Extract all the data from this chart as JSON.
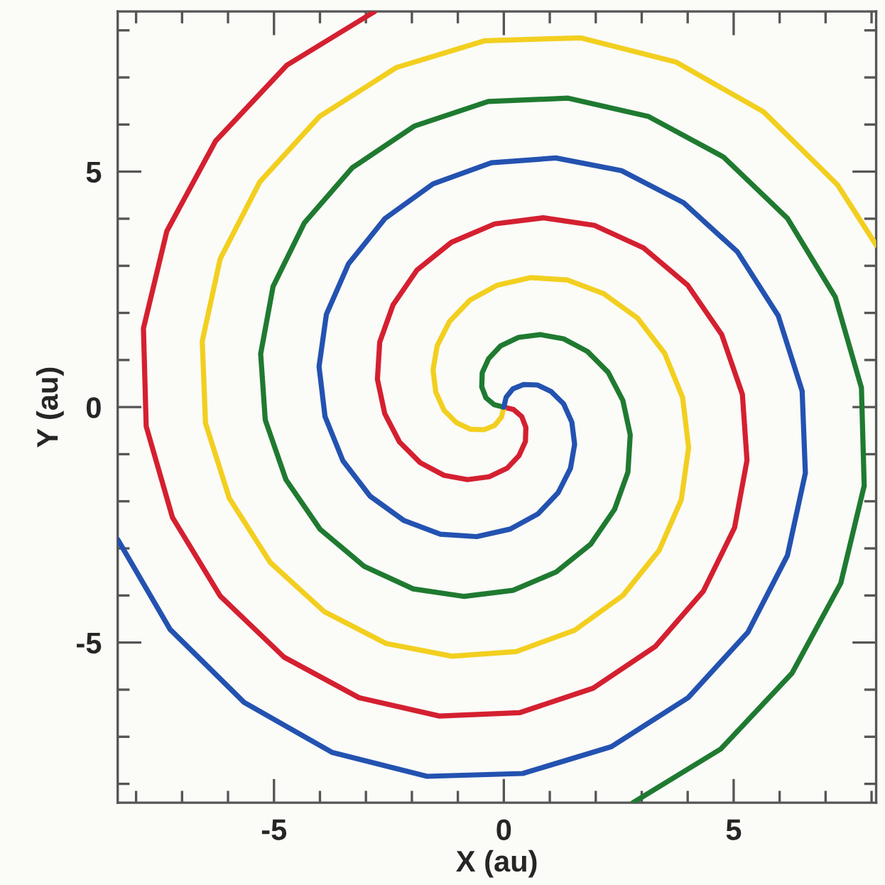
{
  "chart_data": {
    "type": "line",
    "xlabel": "X (au)",
    "ylabel": "Y (au)",
    "xlim": [
      -8.4,
      8.1
    ],
    "ylim": [
      -8.4,
      8.4
    ],
    "xticks": [
      {
        "value": -8,
        "label": null
      },
      {
        "value": -7,
        "label": null
      },
      {
        "value": -6,
        "label": null
      },
      -5,
      {
        "value": -4,
        "label": null
      },
      {
        "value": -3,
        "label": null
      },
      {
        "value": -2,
        "label": null
      },
      {
        "value": -1,
        "label": null
      },
      0,
      {
        "value": 1,
        "label": null
      },
      {
        "value": 2,
        "label": null
      },
      {
        "value": 3,
        "label": null
      },
      {
        "value": 4,
        "label": null
      },
      5,
      {
        "value": 6,
        "label": null
      },
      {
        "value": 7,
        "label": null
      },
      {
        "value": 8,
        "label": null
      }
    ],
    "yticks": [
      {
        "value": -8,
        "label": null
      },
      {
        "value": -7,
        "label": null
      },
      {
        "value": -6,
        "label": null
      },
      -5,
      {
        "value": -4,
        "label": null
      },
      {
        "value": -3,
        "label": null
      },
      {
        "value": -2,
        "label": null
      },
      {
        "value": -1,
        "label": null
      },
      0,
      {
        "value": 1,
        "label": null
      },
      {
        "value": 2,
        "label": null
      },
      {
        "value": 3,
        "label": null
      },
      {
        "value": 4,
        "label": null
      },
      5,
      {
        "value": 6,
        "label": null
      },
      {
        "value": 7,
        "label": null
      },
      {
        "value": 8,
        "label": null
      }
    ],
    "grid": false,
    "legend": false,
    "marker": "none",
    "line_style": "solid",
    "series": [
      {
        "color": "#d42030",
        "x": [
          0,
          0.21,
          0.39,
          0.48,
          0.47,
          0.33,
          0.07,
          -0.32,
          -0.79,
          -1.3,
          -1.82,
          -2.27,
          -2.59,
          -2.75,
          -2.7,
          -2.41,
          -1.89,
          -1.14,
          -0.2,
          0.86,
          1.97,
          3.04,
          4.0,
          4.74,
          5.19,
          5.29,
          5.02,
          4.34,
          3.3,
          1.94,
          0.34,
          -1.4,
          -3.15,
          -4.78,
          -6.17,
          -7.21,
          -7.78,
          -7.84,
          -7.33,
          -6.27,
          -4.72,
          -2.81
        ],
        "values": [
          0,
          -0.05,
          -0.2,
          -0.43,
          -0.73,
          -1.03,
          -1.3,
          -1.48,
          -1.54,
          -1.45,
          -1.18,
          -0.74,
          -0.14,
          0.59,
          1.38,
          2.17,
          2.91,
          3.5,
          3.89,
          4.02,
          3.86,
          3.38,
          2.59,
          1.54,
          0.27,
          -1.13,
          -2.56,
          -3.91,
          -5.08,
          -5.97,
          -6.49,
          -6.56,
          -6.17,
          -5.31,
          -4.01,
          -2.34,
          -0.41,
          1.67,
          3.74,
          5.65,
          7.26,
          8.4
        ]
      },
      {
        "color": "#f2cf1f",
        "x": [
          0,
          -0.05,
          -0.2,
          -0.43,
          -0.73,
          -1.03,
          -1.3,
          -1.48,
          -1.54,
          -1.45,
          -1.18,
          -0.74,
          -0.14,
          0.59,
          1.38,
          2.17,
          2.91,
          3.5,
          3.89,
          4.02,
          3.86,
          3.38,
          2.59,
          1.54,
          0.27,
          -1.13,
          -2.56,
          -3.91,
          -5.08,
          -5.97,
          -6.49,
          -6.56,
          -6.17,
          -5.31,
          -4.01,
          -2.34,
          -0.41,
          1.67,
          3.74,
          5.65,
          7.26,
          8.1
        ],
        "values": [
          0,
          -0.21,
          -0.39,
          -0.48,
          -0.47,
          -0.33,
          -0.07,
          0.32,
          0.79,
          1.3,
          1.82,
          2.27,
          2.59,
          2.75,
          2.7,
          2.41,
          1.89,
          1.14,
          0.2,
          -0.86,
          -1.97,
          -3.04,
          -4.0,
          -4.74,
          -5.19,
          -5.29,
          -5.02,
          -4.34,
          -3.3,
          -1.94,
          -0.34,
          1.4,
          3.15,
          4.78,
          6.17,
          7.21,
          7.78,
          7.84,
          7.33,
          6.27,
          4.72,
          3.44
        ]
      },
      {
        "color": "#1f7a30",
        "x": [
          0,
          -0.21,
          -0.39,
          -0.48,
          -0.47,
          -0.33,
          -0.07,
          0.32,
          0.79,
          1.3,
          1.82,
          2.27,
          2.59,
          2.75,
          2.7,
          2.41,
          1.89,
          1.14,
          0.2,
          -0.86,
          -1.97,
          -3.04,
          -4.0,
          -4.74,
          -5.19,
          -5.29,
          -5.02,
          -4.34,
          -3.3,
          -1.94,
          -0.34,
          1.4,
          3.15,
          4.78,
          6.17,
          7.21,
          7.78,
          7.84,
          7.33,
          6.27,
          4.72,
          2.81
        ],
        "values": [
          0,
          0.05,
          0.2,
          0.43,
          0.73,
          1.03,
          1.3,
          1.48,
          1.54,
          1.45,
          1.18,
          0.74,
          0.14,
          -0.59,
          -1.38,
          -2.17,
          -2.91,
          -3.5,
          -3.89,
          -4.02,
          -3.86,
          -3.38,
          -2.59,
          -1.54,
          -0.27,
          1.13,
          2.56,
          3.91,
          5.08,
          5.97,
          6.49,
          6.56,
          6.17,
          5.31,
          4.01,
          2.34,
          0.41,
          -1.67,
          -3.74,
          -5.65,
          -7.26,
          -8.4
        ]
      },
      {
        "color": "#2352b0",
        "x": [
          0,
          0.05,
          0.2,
          0.43,
          0.73,
          1.03,
          1.3,
          1.48,
          1.54,
          1.45,
          1.18,
          0.74,
          0.14,
          -0.59,
          -1.38,
          -2.17,
          -2.91,
          -3.5,
          -3.89,
          -4.02,
          -3.86,
          -3.38,
          -2.59,
          -1.54,
          -0.27,
          1.13,
          2.56,
          3.91,
          5.08,
          5.97,
          6.49,
          6.56,
          6.17,
          5.31,
          4.01,
          2.34,
          0.41,
          -1.67,
          -3.74,
          -5.65,
          -7.26,
          -8.4
        ],
        "values": [
          0,
          0.21,
          0.39,
          0.48,
          0.47,
          0.33,
          0.07,
          -0.32,
          -0.79,
          -1.3,
          -1.82,
          -2.27,
          -2.59,
          -2.75,
          -2.7,
          -2.41,
          -1.89,
          -1.14,
          -0.2,
          0.86,
          1.97,
          3.04,
          4.0,
          4.74,
          5.19,
          5.29,
          5.02,
          4.34,
          3.3,
          1.94,
          0.34,
          -1.4,
          -3.15,
          -4.78,
          -6.17,
          -7.21,
          -7.78,
          -7.84,
          -7.33,
          -6.27,
          -4.72,
          -2.81
        ]
      }
    ]
  }
}
